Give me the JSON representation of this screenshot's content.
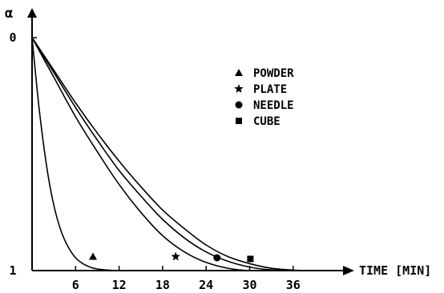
{
  "chart_data": {
    "type": "line",
    "title": "",
    "xlabel": "TIME [MIN]",
    "ylabel": "α",
    "xlim": [
      0,
      40
    ],
    "ylim": [
      0,
      1
    ],
    "y_inverted": true,
    "grid": false,
    "legend_position": "top-center",
    "x_ticks": [
      6,
      12,
      18,
      24,
      30,
      36
    ],
    "x_tick_labels": [
      "6",
      "12",
      "18",
      "24",
      "30",
      "36"
    ],
    "y_ticks": [
      0,
      1
    ],
    "y_tick_labels": [
      "0",
      "1"
    ],
    "series": [
      {
        "name": "POWDER",
        "marker": "triangle",
        "marker_point": {
          "x": 8.4,
          "y": 0.94
        },
        "x": [
          0,
          1,
          2,
          3,
          4,
          5,
          6,
          7,
          8,
          9,
          10,
          11,
          12
        ],
        "y": [
          0,
          0.31,
          0.55,
          0.72,
          0.83,
          0.9,
          0.945,
          0.97,
          0.985,
          0.993,
          0.997,
          0.999,
          1.0
        ]
      },
      {
        "name": "PLATE",
        "marker": "star",
        "marker_point": {
          "x": 19.8,
          "y": 0.94
        },
        "x": [
          0,
          3,
          6,
          9,
          12,
          15,
          18,
          21,
          24,
          27,
          30,
          33
        ],
        "y": [
          0,
          0.17,
          0.34,
          0.49,
          0.63,
          0.75,
          0.85,
          0.92,
          0.965,
          0.99,
          1.0,
          1.0
        ]
      },
      {
        "name": "NEEDLE",
        "marker": "circle",
        "marker_point": {
          "x": 25.5,
          "y": 0.945
        },
        "x": [
          0,
          3,
          6,
          9,
          12,
          15,
          18,
          21,
          24,
          27,
          30,
          33,
          36
        ],
        "y": [
          0,
          0.15,
          0.3,
          0.44,
          0.57,
          0.68,
          0.78,
          0.86,
          0.92,
          0.96,
          0.985,
          0.997,
          1.0
        ]
      },
      {
        "name": "CUBE",
        "marker": "square",
        "marker_point": {
          "x": 30.1,
          "y": 0.95
        },
        "x": [
          0,
          3,
          6,
          9,
          12,
          15,
          18,
          21,
          24,
          27,
          30,
          33,
          36,
          39
        ],
        "y": [
          0,
          0.14,
          0.28,
          0.41,
          0.53,
          0.64,
          0.74,
          0.82,
          0.89,
          0.94,
          0.97,
          0.99,
          0.998,
          1.0
        ]
      }
    ]
  }
}
